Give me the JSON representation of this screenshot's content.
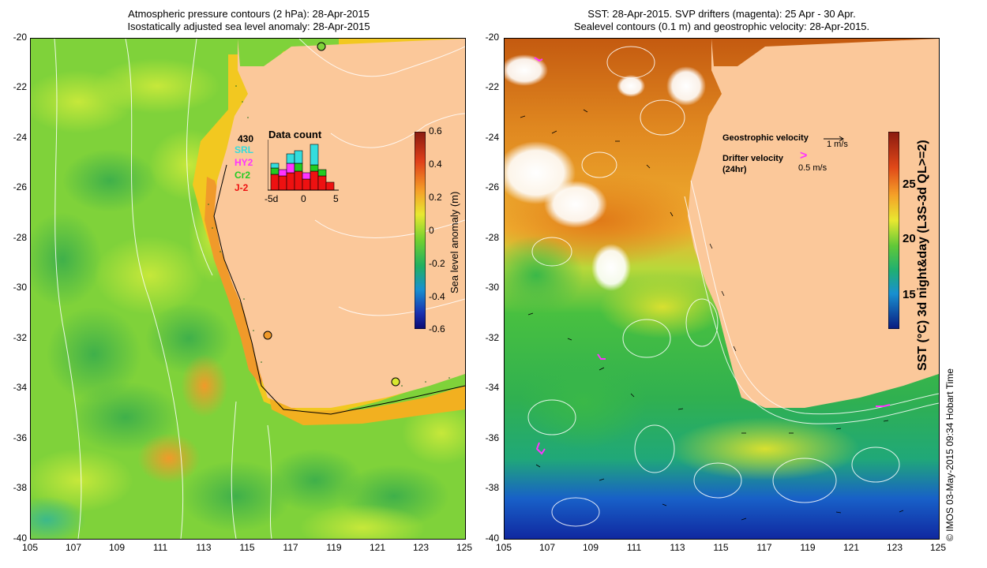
{
  "left_panel": {
    "title_line1": "Atmospheric pressure contours (2 hPa): 28-Apr-2015",
    "title_line2": "Isostatically adjusted sea level anomaly: 28-Apr-2015",
    "colorbar": {
      "label": "Sea level anomaly (m)",
      "ticks": [
        "0.6",
        "0.4",
        "0.2",
        "0",
        "-0.2",
        "-0.4",
        "-0.6"
      ]
    },
    "data_count": {
      "title": "Data count",
      "total": "430",
      "satellites": [
        {
          "name": "SRL",
          "color": "#33dddd"
        },
        {
          "name": "HY2",
          "color": "#ff33ff"
        },
        {
          "name": "Cr2",
          "color": "#22cc22"
        },
        {
          "name": "J-2",
          "color": "#ee1111"
        }
      ],
      "x_ticks": [
        "-5d",
        "0",
        "5"
      ]
    }
  },
  "right_panel": {
    "title_line1": "SST: 28-Apr-2015. SVP drifters (magenta): 25 Apr - 30 Apr.",
    "title_line2": "Sealevel contours (0.1 m) and geostrophic velocity: 28-Apr-2015.",
    "colorbar": {
      "label": "SST (°C) 3d night&day (L3S-3d QL>=2)",
      "ticks": [
        "25",
        "20",
        "15"
      ]
    },
    "legend": {
      "geostrophic_label": "Geostrophic velocity",
      "geostrophic_scale": "1 m/s",
      "drifter_label": "Drifter velocity",
      "drifter_sub": "(24hr)",
      "drifter_scale": "0.5 m/s"
    }
  },
  "axes": {
    "y_ticks": [
      "-20",
      "-22",
      "-24",
      "-26",
      "-28",
      "-30",
      "-32",
      "-34",
      "-36",
      "-38",
      "-40"
    ],
    "x_ticks": [
      "105",
      "107",
      "109",
      "111",
      "113",
      "115",
      "117",
      "119",
      "121",
      "123",
      "125"
    ]
  },
  "credit": "© IMOS 03-May-2015 09:34 Hobart Time",
  "colors": {
    "land": "#fbc89a",
    "sla_green": "#7fd23a",
    "sst_warm": "#e38a1e",
    "sst_cool": "#2fb84a",
    "drifter": "#ff33ff"
  }
}
